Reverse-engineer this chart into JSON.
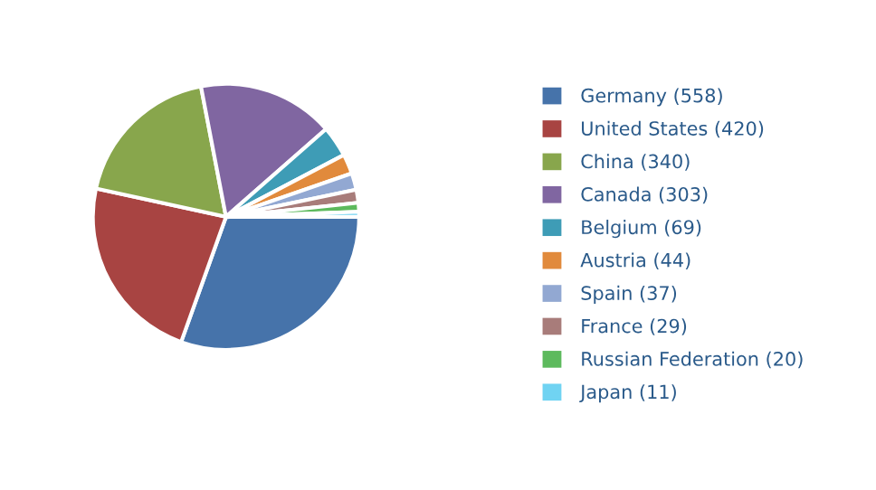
{
  "chart_data": {
    "type": "pie",
    "categories": [
      "Germany (558)",
      "United States (420)",
      "China (340)",
      "Canada (303)",
      "Belgium (69)",
      "Austria (44)",
      "Spain (37)",
      "France (29)",
      "Russian Federation (20)",
      "Japan (11)"
    ],
    "values": [
      558,
      420,
      340,
      303,
      69,
      44,
      37,
      29,
      20,
      11
    ],
    "colors": [
      "#4673aa",
      "#a84442",
      "#88a64c",
      "#8066a1",
      "#3e9cb6",
      "#e18a3c",
      "#92a8d2",
      "#a87c7a",
      "#5dba5d",
      "#70d3f2"
    ],
    "legend": "right"
  }
}
